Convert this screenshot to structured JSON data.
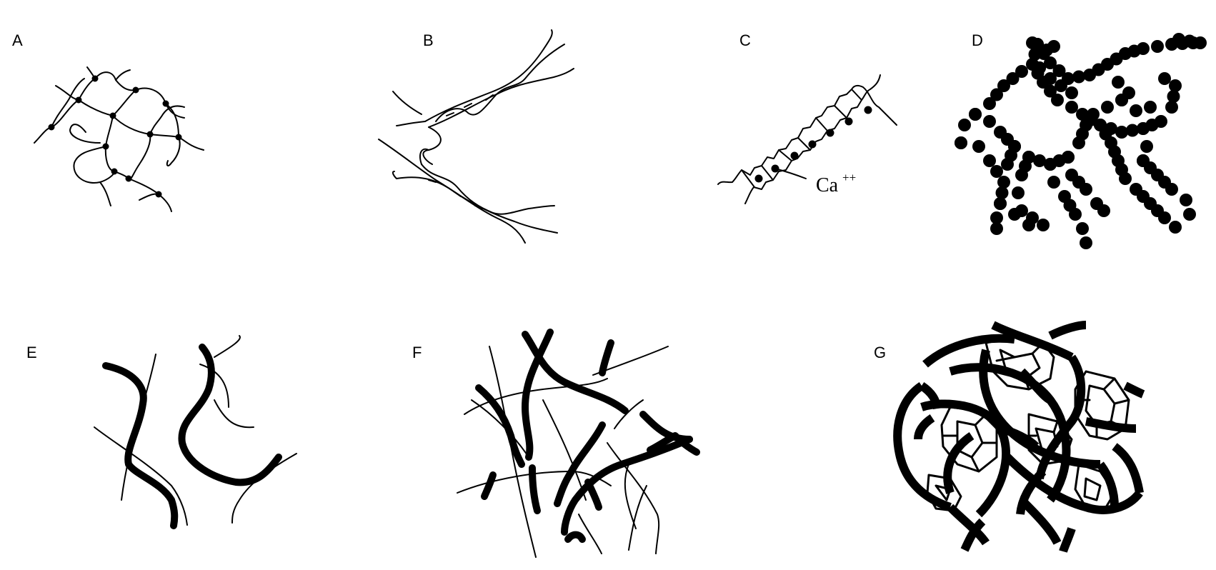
{
  "panels": {
    "a": {
      "label": "A"
    },
    "b": {
      "label": "B"
    },
    "c": {
      "label": "C",
      "ion_label": "Ca",
      "ion_charge": "++"
    },
    "d": {
      "label": "D"
    },
    "e": {
      "label": "E"
    },
    "f": {
      "label": "F"
    },
    "g": {
      "label": "G"
    }
  }
}
